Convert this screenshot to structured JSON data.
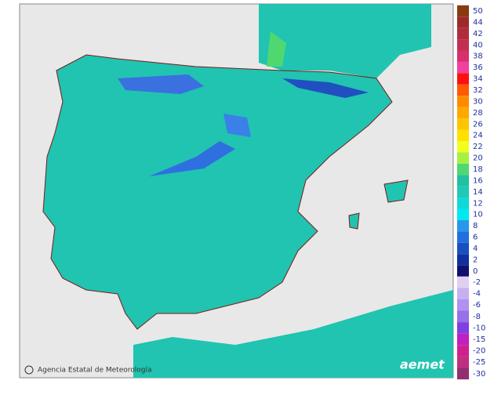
{
  "legend": {
    "positive": [
      {
        "label": 50,
        "color": "#8a3a10"
      },
      {
        "label": 44,
        "color": "#9c2a2a"
      },
      {
        "label": 42,
        "color": "#b02c3c"
      },
      {
        "label": 40,
        "color": "#c23050"
      },
      {
        "label": 38,
        "color": "#d8306a"
      },
      {
        "label": 36,
        "color": "#f040a0"
      },
      {
        "label": 34,
        "color": "#ff1010"
      },
      {
        "label": 32,
        "color": "#ff5a00"
      },
      {
        "label": 30,
        "color": "#ff8a00"
      },
      {
        "label": 28,
        "color": "#ffa800"
      },
      {
        "label": 26,
        "color": "#ffc400"
      },
      {
        "label": 24,
        "color": "#ffe000"
      },
      {
        "label": 22,
        "color": "#f0ff20"
      },
      {
        "label": 20,
        "color": "#a8f040"
      },
      {
        "label": 18,
        "color": "#50d870"
      },
      {
        "label": 16,
        "color": "#20c0a0"
      },
      {
        "label": 14,
        "color": "#20c8b8"
      },
      {
        "label": 12,
        "color": "#10d8d8"
      },
      {
        "label": 10,
        "color": "#00e8f0"
      },
      {
        "label": 8,
        "color": "#2898e8"
      },
      {
        "label": 6,
        "color": "#2070e0"
      },
      {
        "label": 4,
        "color": "#1850c0"
      },
      {
        "label": 2,
        "color": "#1030a0"
      },
      {
        "label": 0,
        "color": "#101070"
      }
    ],
    "negative": [
      {
        "label": -2,
        "color": "#e0d0f0"
      },
      {
        "label": -4,
        "color": "#c8b0f0"
      },
      {
        "label": -6,
        "color": "#b090f0"
      },
      {
        "label": -8,
        "color": "#9870e8"
      },
      {
        "label": -10,
        "color": "#8040e0"
      },
      {
        "label": -15,
        "color": "#c020c0"
      },
      {
        "label": -20,
        "color": "#d02090"
      },
      {
        "label": -25,
        "color": "#c03080"
      },
      {
        "label": -30,
        "color": "#903070"
      }
    ]
  },
  "credit": "Agencia Estatal de Meteorología",
  "logo": "aemet"
}
